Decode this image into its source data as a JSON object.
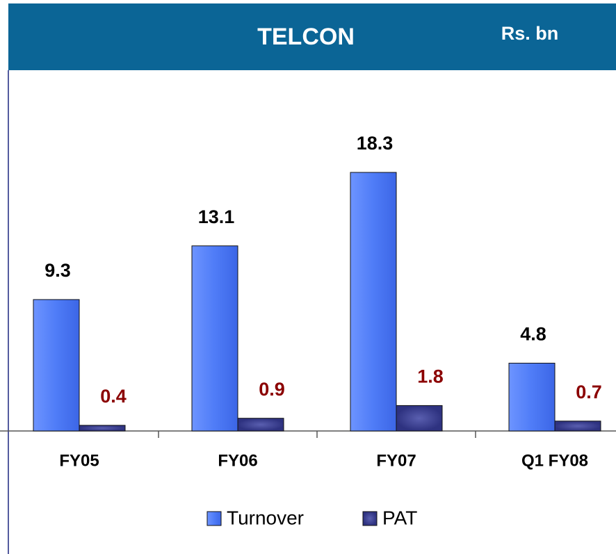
{
  "chart_data": {
    "type": "bar",
    "title": "TELCON",
    "subtitle": "Rs. bn",
    "categories": [
      "FY05",
      "FY06",
      "FY07",
      "Q1 FY08"
    ],
    "series": [
      {
        "name": "Turnover",
        "color": "#4f7cf7",
        "label_color": "#000000",
        "values": [
          9.3,
          13.1,
          18.3,
          4.8
        ]
      },
      {
        "name": "PAT",
        "color": "#383c8f",
        "label_color": "#8b0000",
        "values": [
          0.4,
          0.9,
          1.8,
          0.7
        ]
      }
    ],
    "legend": "bottom"
  }
}
